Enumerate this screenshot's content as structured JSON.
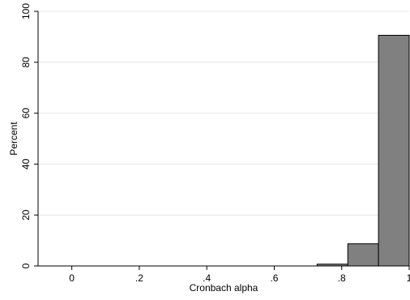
{
  "chart_data": {
    "type": "bar",
    "histogram": true,
    "xlabel": "Cronbach alpha",
    "ylabel": "Percent",
    "xlim": [
      -0.1,
      1.0
    ],
    "ylim": [
      0,
      100
    ],
    "xticks": [
      0,
      0.2,
      0.4,
      0.6,
      0.8,
      1
    ],
    "xtick_labels": [
      "0",
      ".2",
      ".4",
      ".6",
      ".8",
      "1"
    ],
    "yticks": [
      0,
      20,
      40,
      60,
      80,
      100
    ],
    "ytick_labels": [
      "0",
      "20",
      "40",
      "60",
      "80",
      "100"
    ],
    "grid": true,
    "bins": [
      {
        "start": 0.727,
        "end": 0.818,
        "value": 0.7
      },
      {
        "start": 0.818,
        "end": 0.909,
        "value": 8.7
      },
      {
        "start": 0.909,
        "end": 1.0,
        "value": 90.6
      }
    ],
    "colors": {
      "bar_fill": "#808080",
      "bar_stroke": "#000000",
      "grid": "#e6e6e6",
      "axis": "#000000"
    }
  }
}
